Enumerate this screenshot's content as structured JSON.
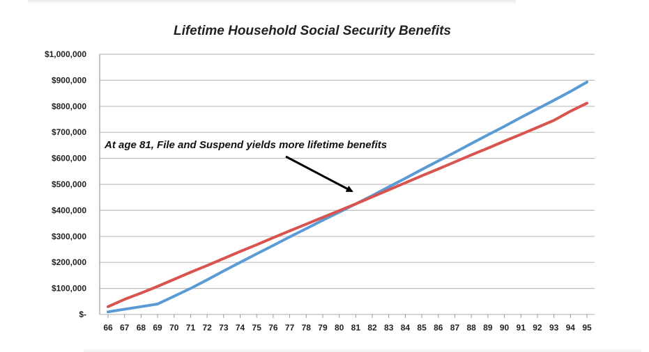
{
  "chart_data": {
    "type": "line",
    "title": "Lifetime Household Social Security Benefits",
    "xlabel": "",
    "ylabel": "",
    "x": [
      66,
      67,
      68,
      69,
      70,
      71,
      72,
      73,
      74,
      75,
      76,
      77,
      78,
      79,
      80,
      81,
      82,
      83,
      84,
      85,
      86,
      87,
      88,
      89,
      90,
      91,
      92,
      93,
      94,
      95
    ],
    "ylim": [
      0,
      1000000
    ],
    "y_ticks": [
      0,
      100000,
      200000,
      300000,
      400000,
      500000,
      600000,
      700000,
      800000,
      900000,
      1000000
    ],
    "y_tick_labels": [
      "$-",
      "$100,000",
      "$200,000",
      "$300,000",
      "$400,000",
      "$500,000",
      "$600,000",
      "$700,000",
      "$800,000",
      "$900,000",
      "$1,000,000"
    ],
    "grid": "horizontal",
    "series": [
      {
        "color": "#5b9bd5",
        "values": [
          10000,
          20000,
          30000,
          40000,
          70000,
          100000,
          133000,
          167000,
          200000,
          233000,
          265000,
          298000,
          330000,
          362000,
          393000,
          425000,
          457000,
          490000,
          523000,
          557000,
          590000,
          623000,
          657000,
          690000,
          723000,
          757000,
          790000,
          823000,
          857000,
          893000
        ]
      },
      {
        "color": "#d9534f",
        "values": [
          30000,
          58000,
          82000,
          108000,
          135000,
          162000,
          188000,
          215000,
          242000,
          268000,
          295000,
          321000,
          347000,
          373000,
          399000,
          425000,
          452000,
          479000,
          506000,
          533000,
          559000,
          586000,
          613000,
          639000,
          666000,
          692000,
          719000,
          746000,
          781000,
          812000
        ]
      }
    ],
    "annotation": {
      "text": "At age 81, File and Suspend yields more lifetime benefits",
      "points_to_x": 81
    }
  }
}
